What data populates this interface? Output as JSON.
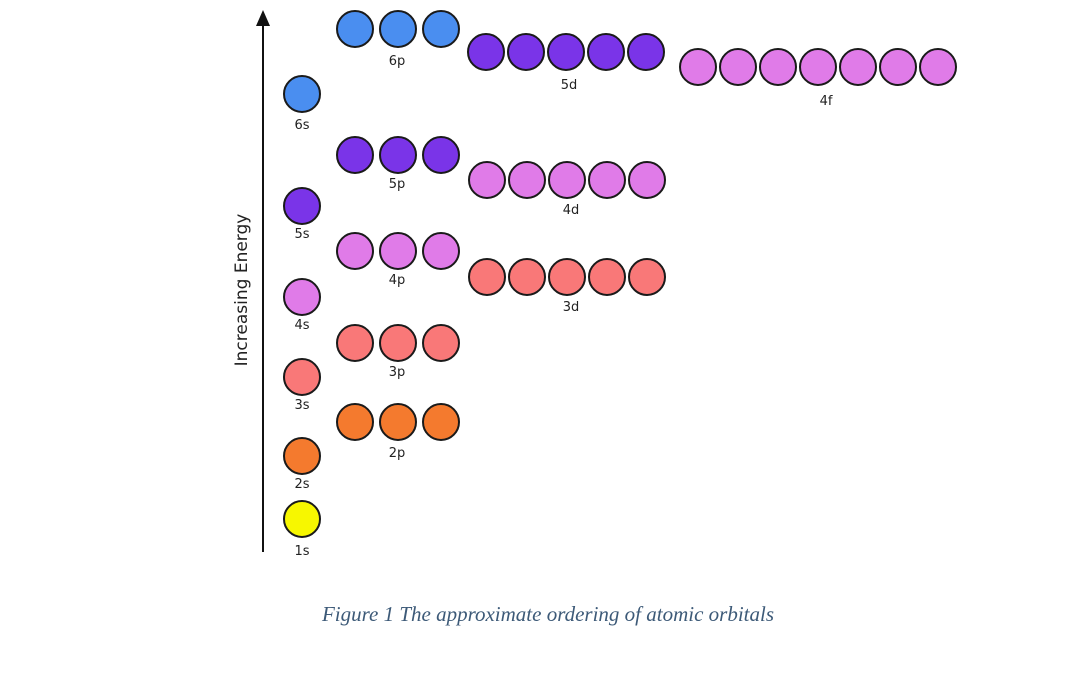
{
  "axis": {
    "label": "Increasing Energy"
  },
  "caption": "Figure 1 The approximate ordering of atomic orbitals",
  "colors": {
    "n1": "#f7f700",
    "n2": "#f47a2e",
    "n3": "#f97878",
    "n4": "#e07be8",
    "n5": "#7a34e8",
    "n6": "#4a8ef0",
    "outline": "#1a1a1a"
  },
  "orbitals": [
    {
      "label": "1s",
      "count": 1,
      "color_key": "n1"
    },
    {
      "label": "2s",
      "count": 1,
      "color_key": "n2"
    },
    {
      "label": "2p",
      "count": 3,
      "color_key": "n2"
    },
    {
      "label": "3s",
      "count": 1,
      "color_key": "n3"
    },
    {
      "label": "3p",
      "count": 3,
      "color_key": "n3"
    },
    {
      "label": "4s",
      "count": 1,
      "color_key": "n4"
    },
    {
      "label": "3d",
      "count": 5,
      "color_key": "n3"
    },
    {
      "label": "4p",
      "count": 3,
      "color_key": "n4"
    },
    {
      "label": "5s",
      "count": 1,
      "color_key": "n5"
    },
    {
      "label": "4d",
      "count": 5,
      "color_key": "n4"
    },
    {
      "label": "5p",
      "count": 3,
      "color_key": "n5"
    },
    {
      "label": "6s",
      "count": 1,
      "color_key": "n6"
    },
    {
      "label": "4f",
      "count": 7,
      "color_key": "n4"
    },
    {
      "label": "5d",
      "count": 5,
      "color_key": "n5"
    },
    {
      "label": "6p",
      "count": 3,
      "color_key": "n6"
    }
  ]
}
